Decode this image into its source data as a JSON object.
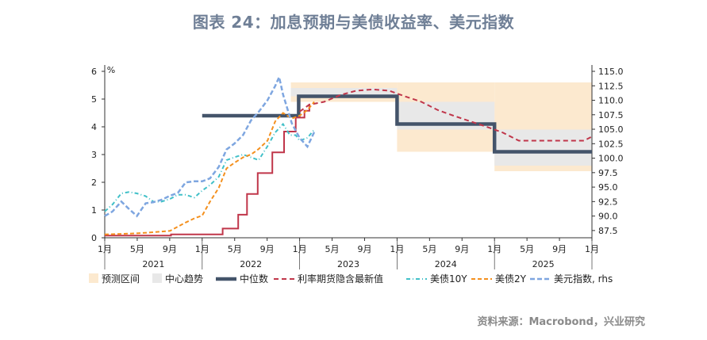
{
  "title": "图表 24：加息预期与美债收益率、美元指数",
  "source": "资料来源：Macrobond，兴业研究",
  "chart_data": {
    "type": "line",
    "left_axis": {
      "unit_label": "%",
      "ticks": [
        "0",
        "1",
        "2",
        "3",
        "4",
        "5",
        "6"
      ],
      "ylim": [
        0,
        6
      ]
    },
    "right_axis": {
      "label": "rhs",
      "ticks": [
        "87.5",
        "90.0",
        "92.5",
        "95.0",
        "97.5",
        "100.0",
        "102.5",
        "105.0",
        "107.5",
        "110.0",
        "112.5",
        "115.0"
      ],
      "ylim": [
        86.25,
        115
      ]
    },
    "x_ticks": [
      "1月",
      "5月",
      "9月",
      "1月",
      "5月",
      "9月",
      "1月",
      "5月",
      "9月",
      "1月",
      "5月",
      "9月",
      "1月",
      "5月",
      "9月",
      "1月"
    ],
    "year_labels": [
      "2021",
      "2022",
      "2023",
      "2024",
      "2025"
    ],
    "legend": [
      "预测区间",
      "中心趋势",
      "中位数",
      "利率期货隐含最新值",
      "美债10Y",
      "美债2Y",
      "美元指数, rhs"
    ],
    "colors": {
      "band": "#fce9cf",
      "center": "#e8e8e8",
      "median": "#44546a",
      "futures": "#c0364a",
      "ust10": "#41c0c8",
      "ust2": "#f4901e",
      "dxy": "#7ea6e0"
    },
    "forecast_band": [
      {
        "x0": 2022.91,
        "x1": 2024.0,
        "low": 4.9,
        "high": 5.6
      },
      {
        "x0": 2024.0,
        "x1": 2025.0,
        "low": 3.1,
        "high": 5.6
      },
      {
        "x0": 2025.0,
        "x1": 2026.0,
        "low": 2.4,
        "high": 5.6
      }
    ],
    "center_trend": [
      {
        "x0": 2022.91,
        "x1": 2024.0,
        "low": 5.1,
        "high": 5.4
      },
      {
        "x0": 2024.0,
        "x1": 2025.0,
        "low": 3.9,
        "high": 4.9
      },
      {
        "x0": 2025.0,
        "x1": 2026.0,
        "low": 2.6,
        "high": 3.9
      }
    ],
    "median": [
      [
        2022.0,
        4.4
      ],
      [
        2022.99,
        4.4
      ],
      [
        2022.99,
        5.1
      ],
      [
        2024.0,
        5.1
      ],
      [
        2024.0,
        4.1
      ],
      [
        2025.0,
        4.1
      ],
      [
        2025.0,
        3.1
      ],
      [
        2026.0,
        3.1
      ]
    ],
    "futures_implied": [
      [
        2023.0,
        4.55
      ],
      [
        2023.1,
        4.8
      ],
      [
        2023.25,
        4.9
      ],
      [
        2023.42,
        5.15
      ],
      [
        2023.58,
        5.3
      ],
      [
        2023.75,
        5.35
      ],
      [
        2023.92,
        5.3
      ],
      [
        2024.08,
        5.1
      ],
      [
        2024.25,
        4.9
      ],
      [
        2024.42,
        4.6
      ],
      [
        2024.58,
        4.4
      ],
      [
        2024.75,
        4.2
      ],
      [
        2024.92,
        4.0
      ],
      [
        2025.08,
        3.8
      ],
      [
        2025.25,
        3.5
      ],
      [
        2025.42,
        3.5
      ],
      [
        2025.58,
        3.5
      ],
      [
        2025.75,
        3.5
      ],
      [
        2025.92,
        3.5
      ],
      [
        2026.0,
        3.65
      ]
    ],
    "fed_funds_actual": [
      [
        2021.0,
        0.08
      ],
      [
        2021.68,
        0.08
      ],
      [
        2021.68,
        0.12
      ],
      [
        2022.21,
        0.12
      ],
      [
        2022.21,
        0.33
      ],
      [
        2022.37,
        0.33
      ],
      [
        2022.37,
        0.83
      ],
      [
        2022.46,
        0.83
      ],
      [
        2022.46,
        1.58
      ],
      [
        2022.57,
        1.58
      ],
      [
        2022.57,
        2.33
      ],
      [
        2022.72,
        2.33
      ],
      [
        2022.72,
        3.08
      ],
      [
        2022.84,
        3.08
      ],
      [
        2022.84,
        3.83
      ],
      [
        2022.96,
        3.83
      ],
      [
        2022.96,
        4.33
      ],
      [
        2023.05,
        4.33
      ],
      [
        2023.05,
        4.58
      ],
      [
        2023.1,
        4.58
      ],
      [
        2023.1,
        4.83
      ]
    ],
    "ust10y": [
      [
        2021.0,
        0.95
      ],
      [
        2021.08,
        1.2
      ],
      [
        2021.17,
        1.6
      ],
      [
        2021.25,
        1.65
      ],
      [
        2021.33,
        1.6
      ],
      [
        2021.42,
        1.5
      ],
      [
        2021.5,
        1.3
      ],
      [
        2021.58,
        1.3
      ],
      [
        2021.67,
        1.4
      ],
      [
        2021.75,
        1.55
      ],
      [
        2021.83,
        1.55
      ],
      [
        2021.92,
        1.45
      ],
      [
        2022.0,
        1.7
      ],
      [
        2022.08,
        1.9
      ],
      [
        2022.17,
        2.2
      ],
      [
        2022.25,
        2.8
      ],
      [
        2022.33,
        2.9
      ],
      [
        2022.42,
        3.0
      ],
      [
        2022.5,
        2.9
      ],
      [
        2022.58,
        2.8
      ],
      [
        2022.67,
        3.3
      ],
      [
        2022.75,
        3.8
      ],
      [
        2022.83,
        4.1
      ],
      [
        2022.9,
        3.7
      ],
      [
        2022.96,
        3.7
      ],
      [
        2023.0,
        3.5
      ],
      [
        2023.08,
        3.6
      ],
      [
        2023.15,
        3.9
      ]
    ],
    "ust2y": [
      [
        2021.0,
        0.12
      ],
      [
        2021.17,
        0.14
      ],
      [
        2021.33,
        0.16
      ],
      [
        2021.5,
        0.2
      ],
      [
        2021.67,
        0.25
      ],
      [
        2021.75,
        0.4
      ],
      [
        2021.83,
        0.55
      ],
      [
        2021.92,
        0.7
      ],
      [
        2022.0,
        0.8
      ],
      [
        2022.08,
        1.3
      ],
      [
        2022.17,
        1.8
      ],
      [
        2022.25,
        2.5
      ],
      [
        2022.33,
        2.7
      ],
      [
        2022.42,
        2.9
      ],
      [
        2022.5,
        3.0
      ],
      [
        2022.58,
        3.2
      ],
      [
        2022.67,
        3.5
      ],
      [
        2022.75,
        4.2
      ],
      [
        2022.83,
        4.5
      ],
      [
        2022.92,
        4.3
      ],
      [
        2023.0,
        4.4
      ],
      [
        2023.08,
        4.6
      ],
      [
        2023.15,
        4.9
      ]
    ],
    "dxy": [
      [
        2021.0,
        90.0
      ],
      [
        2021.08,
        90.8
      ],
      [
        2021.17,
        92.5
      ],
      [
        2021.25,
        91.2
      ],
      [
        2021.33,
        90.0
      ],
      [
        2021.42,
        92.2
      ],
      [
        2021.5,
        92.4
      ],
      [
        2021.58,
        92.8
      ],
      [
        2021.67,
        93.5
      ],
      [
        2021.75,
        94.0
      ],
      [
        2021.83,
        95.8
      ],
      [
        2021.92,
        96.0
      ],
      [
        2022.0,
        96.0
      ],
      [
        2022.08,
        96.5
      ],
      [
        2022.17,
        98.5
      ],
      [
        2022.25,
        101.5
      ],
      [
        2022.33,
        102.5
      ],
      [
        2022.42,
        104.0
      ],
      [
        2022.5,
        106.5
      ],
      [
        2022.58,
        108.0
      ],
      [
        2022.67,
        110.0
      ],
      [
        2022.75,
        112.5
      ],
      [
        2022.79,
        114.0
      ],
      [
        2022.83,
        111.0
      ],
      [
        2022.92,
        106.0
      ],
      [
        2023.0,
        103.5
      ],
      [
        2023.08,
        102.0
      ],
      [
        2023.15,
        104.5
      ]
    ]
  }
}
